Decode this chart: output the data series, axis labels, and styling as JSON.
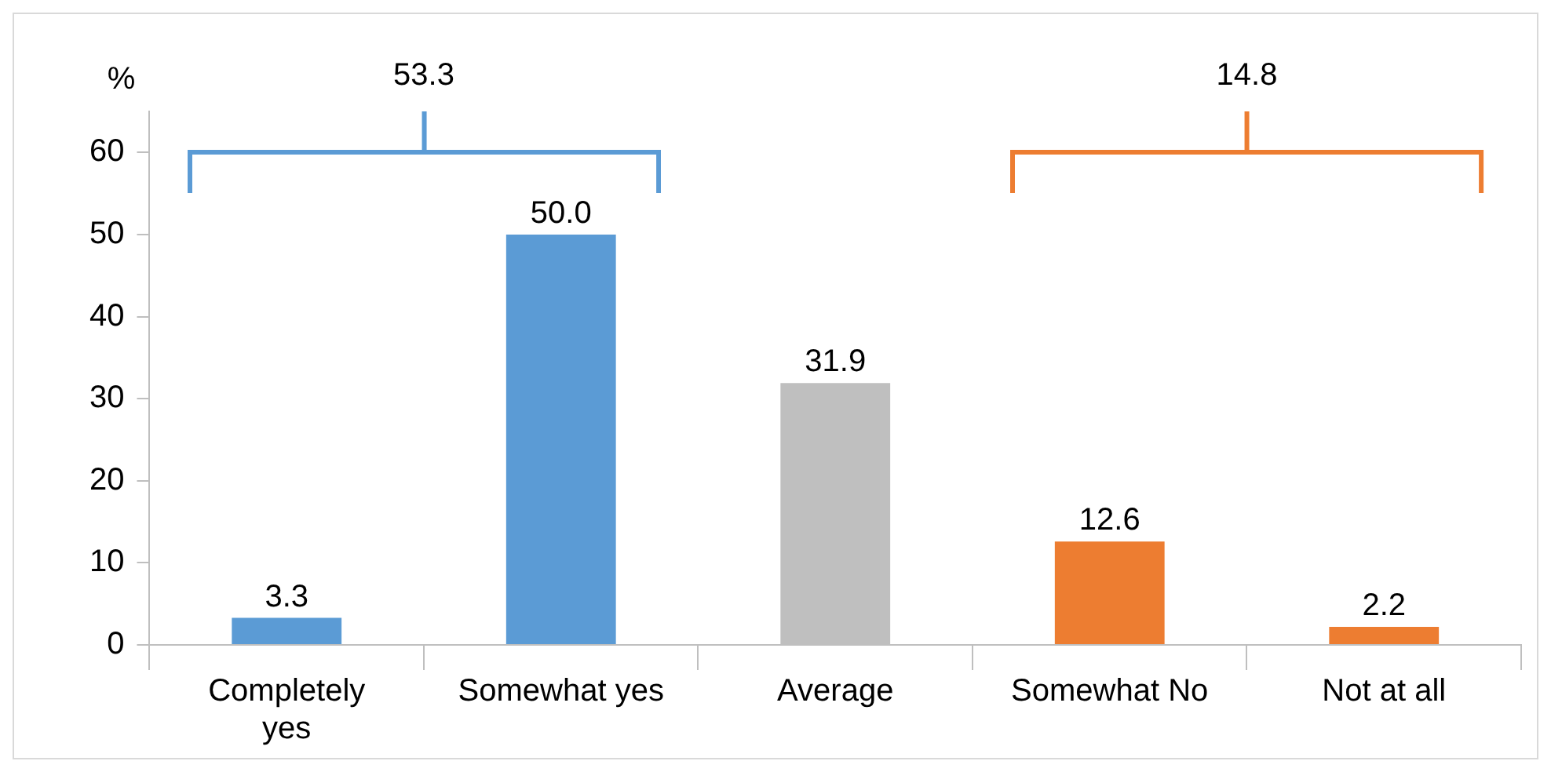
{
  "chart_data": {
    "type": "bar",
    "ylabel": "%",
    "categories": [
      "Completely yes",
      "Somewhat yes",
      "Average",
      "Somewhat No",
      "Not at all"
    ],
    "values": [
      3.3,
      50.0,
      31.9,
      12.6,
      2.2
    ],
    "colors": [
      "#5b9bd5",
      "#5b9bd5",
      "#bfbfbf",
      "#ed7d31",
      "#ed7d31"
    ],
    "value_labels": [
      "3.3",
      "50.0",
      "31.9",
      "12.6",
      "2.2"
    ],
    "ylim": [
      0,
      65
    ],
    "yticks": [
      0,
      10,
      20,
      30,
      40,
      50,
      60
    ],
    "grid": false,
    "legend": false,
    "annotations": [
      "53.3",
      "14.8"
    ]
  }
}
